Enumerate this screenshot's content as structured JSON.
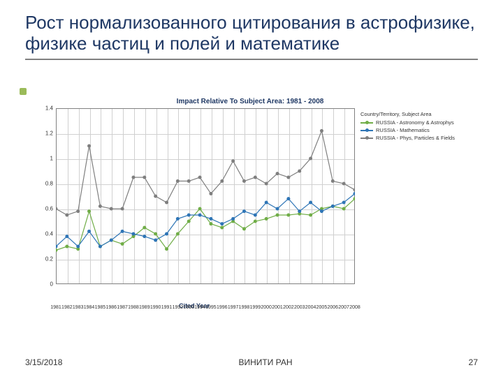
{
  "title": "Рост нормализованного цитирования в астрофизике, физике частиц и полей и математике",
  "footer": {
    "date": "3/15/2018",
    "org": "ВИНИТИ РАН",
    "page": "27"
  },
  "chart": {
    "type": "line",
    "title": "Impact Relative To Subject Area: 1981 - 2008",
    "xlabel": "Cited Year",
    "categories": [
      "1981",
      "1982",
      "1983",
      "1984",
      "1985",
      "1986",
      "1987",
      "1988",
      "1989",
      "1990",
      "1991",
      "1992",
      "1993",
      "1994",
      "1995",
      "1996",
      "1997",
      "1998",
      "1999",
      "2000",
      "2001",
      "2002",
      "2003",
      "2004",
      "2005",
      "2006",
      "2007",
      "2008"
    ],
    "ylim": [
      0,
      1.4
    ],
    "yticks": [
      0,
      0.2,
      0.4,
      0.6,
      0.8,
      1.0,
      1.2,
      1.4
    ],
    "background_color": "#ffffff",
    "grid_color": "#d0d0d0",
    "axis_color": "#808080",
    "title_fontsize": 10,
    "label_fontsize": 9,
    "tick_fontsize": 8,
    "line_width": 1.2,
    "marker_size": 3,
    "legend": {
      "title": "Country/Territory, Subject Area",
      "items": [
        {
          "label": "RUSSIA - Astronomy & Astrophys",
          "color": "#70ad47"
        },
        {
          "label": "RUSSIA - Mathematics",
          "color": "#2e75b6"
        },
        {
          "label": "RUSSIA - Phys, Particles & Fields",
          "color": "#7f7f7f"
        }
      ]
    },
    "series": [
      {
        "name": "RUSSIA - Astronomy & Astrophys",
        "color": "#70ad47",
        "values": [
          0.27,
          0.3,
          0.28,
          0.58,
          0.3,
          0.35,
          0.32,
          0.38,
          0.45,
          0.4,
          0.28,
          0.4,
          0.5,
          0.6,
          0.48,
          0.45,
          0.5,
          0.44,
          0.5,
          0.52,
          0.55,
          0.55,
          0.56,
          0.55,
          0.6,
          0.62,
          0.6,
          0.68
        ]
      },
      {
        "name": "RUSSIA - Mathematics",
        "color": "#2e75b6",
        "values": [
          0.3,
          0.38,
          0.3,
          0.42,
          0.3,
          0.35,
          0.42,
          0.4,
          0.38,
          0.35,
          0.4,
          0.52,
          0.55,
          0.55,
          0.52,
          0.48,
          0.52,
          0.58,
          0.55,
          0.65,
          0.6,
          0.68,
          0.58,
          0.65,
          0.58,
          0.62,
          0.65,
          0.72
        ]
      },
      {
        "name": "RUSSIA - Phys, Particles & Fields",
        "color": "#7f7f7f",
        "values": [
          0.6,
          0.55,
          0.58,
          1.1,
          0.62,
          0.6,
          0.6,
          0.85,
          0.85,
          0.7,
          0.65,
          0.82,
          0.82,
          0.85,
          0.72,
          0.82,
          0.98,
          0.82,
          0.85,
          0.8,
          0.88,
          0.85,
          0.9,
          1.0,
          1.22,
          0.82,
          0.8,
          0.75
        ]
      }
    ]
  }
}
